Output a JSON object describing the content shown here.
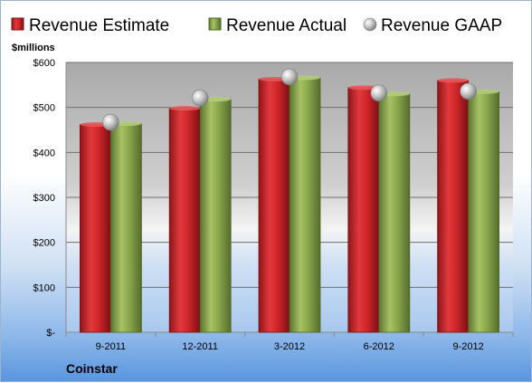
{
  "chart_data": {
    "type": "bar",
    "title": "",
    "unit_label": "$millions",
    "company": "Coinstar",
    "categories": [
      "9-2011",
      "12-2011",
      "3-2012",
      "6-2012",
      "9-2012"
    ],
    "series": [
      {
        "name": "Revenue Estimate",
        "kind": "bar",
        "color": "#d42a2f",
        "values": [
          462,
          498,
          563,
          544,
          560
        ]
      },
      {
        "name": "Revenue Actual",
        "kind": "bar",
        "color": "#8fac52",
        "values": [
          464,
          518,
          566,
          530,
          535
        ]
      },
      {
        "name": "Revenue GAAP",
        "kind": "marker",
        "color": "#b9b9b9",
        "values": [
          467,
          521,
          568,
          532,
          536
        ]
      }
    ],
    "ylim": [
      0,
      600
    ],
    "yticks": [
      0,
      100,
      200,
      300,
      400,
      500,
      600
    ],
    "ytick_labels": [
      "$-",
      "$100",
      "$200",
      "$300",
      "$400",
      "$500",
      "$600"
    ],
    "grid": true,
    "legend_position": "top"
  }
}
